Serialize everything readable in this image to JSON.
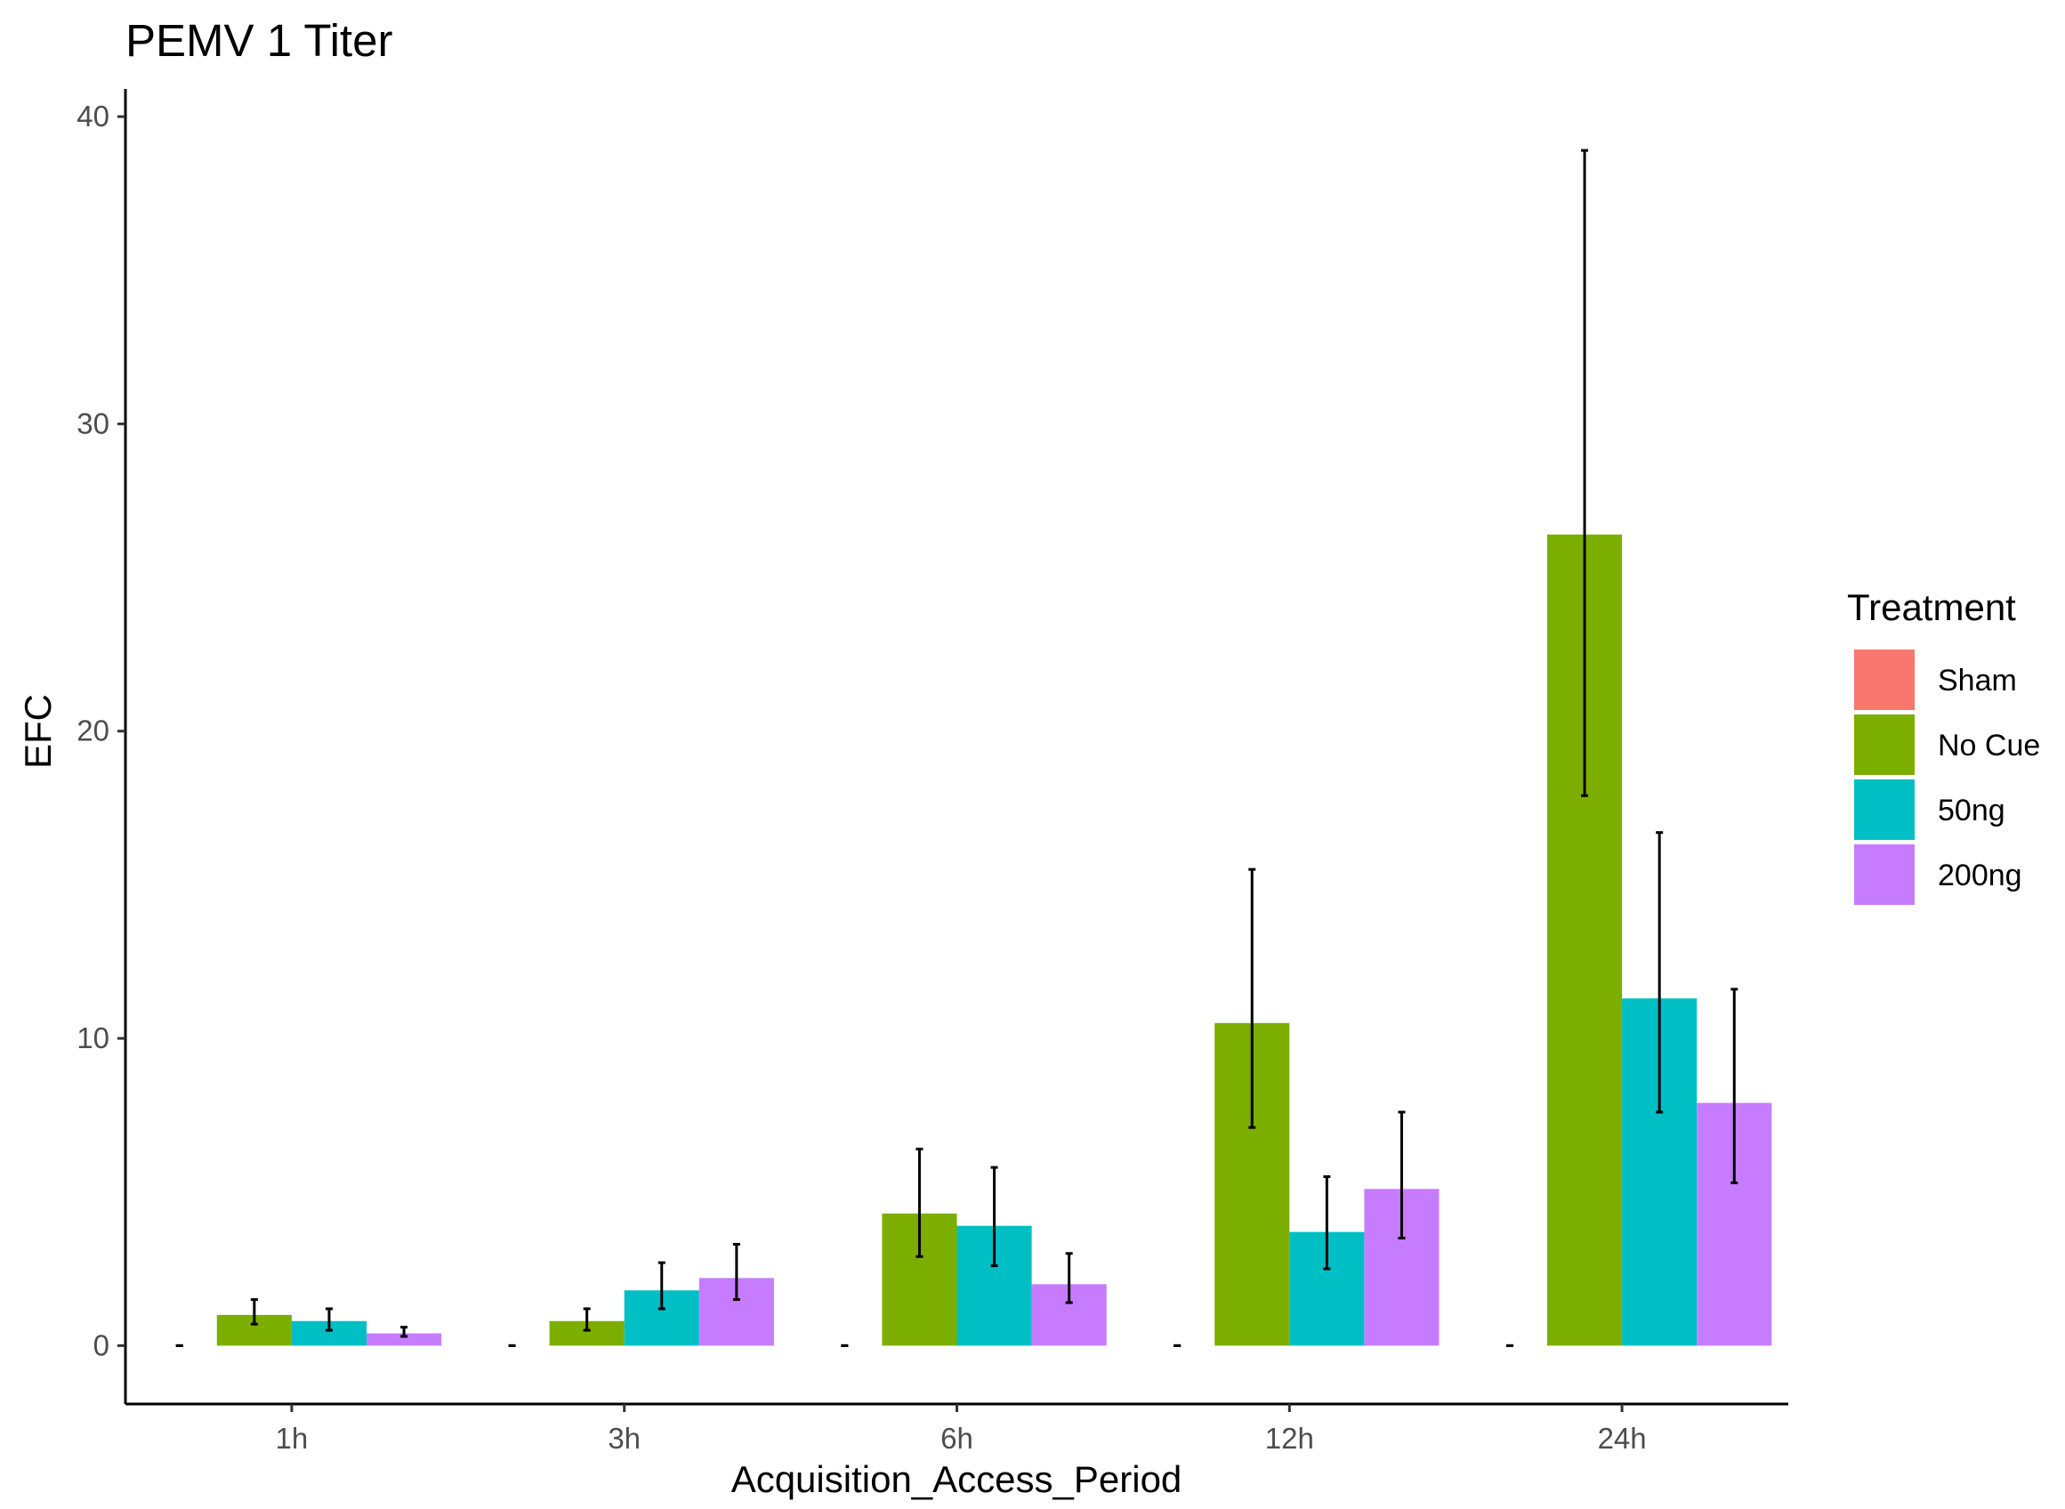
{
  "chart_data": {
    "type": "bar",
    "title": "PEMV 1 Titer",
    "xlabel": "Acquisition_Access_Period",
    "ylabel": "EFC",
    "categories": [
      "1h",
      "3h",
      "6h",
      "12h",
      "24h"
    ],
    "ylim": [
      -1.9,
      40.9
    ],
    "yticks": [
      0,
      10,
      20,
      30,
      40
    ],
    "grid": false,
    "legend": {
      "title": "Treatment",
      "position": "right"
    },
    "series": [
      {
        "name": "Sham",
        "color": "#F8766D",
        "values": [
          0,
          0,
          0,
          0,
          0
        ],
        "error_low": [
          0,
          0,
          0,
          0,
          0
        ],
        "error_high": [
          0,
          0,
          0,
          0,
          0
        ]
      },
      {
        "name": "No Cue",
        "color": "#7CAE00",
        "values": [
          1.0,
          0.8,
          4.3,
          10.5,
          26.4
        ],
        "error_low": [
          0.7,
          0.5,
          2.9,
          7.1,
          17.9
        ],
        "error_high": [
          1.5,
          1.2,
          6.4,
          15.5,
          38.9
        ]
      },
      {
        "name": "50ng",
        "color": "#00BFC4",
        "values": [
          0.8,
          1.8,
          3.9,
          3.7,
          11.3
        ],
        "error_low": [
          0.5,
          1.2,
          2.6,
          2.5,
          7.6
        ],
        "error_high": [
          1.2,
          2.7,
          5.8,
          5.5,
          16.7
        ]
      },
      {
        "name": "200ng",
        "color": "#C77CFF",
        "values": [
          0.4,
          2.2,
          2.0,
          5.1,
          7.9
        ],
        "error_low": [
          0.3,
          1.5,
          1.4,
          3.5,
          5.3
        ],
        "error_high": [
          0.6,
          3.3,
          3.0,
          7.6,
          11.6
        ]
      }
    ]
  }
}
